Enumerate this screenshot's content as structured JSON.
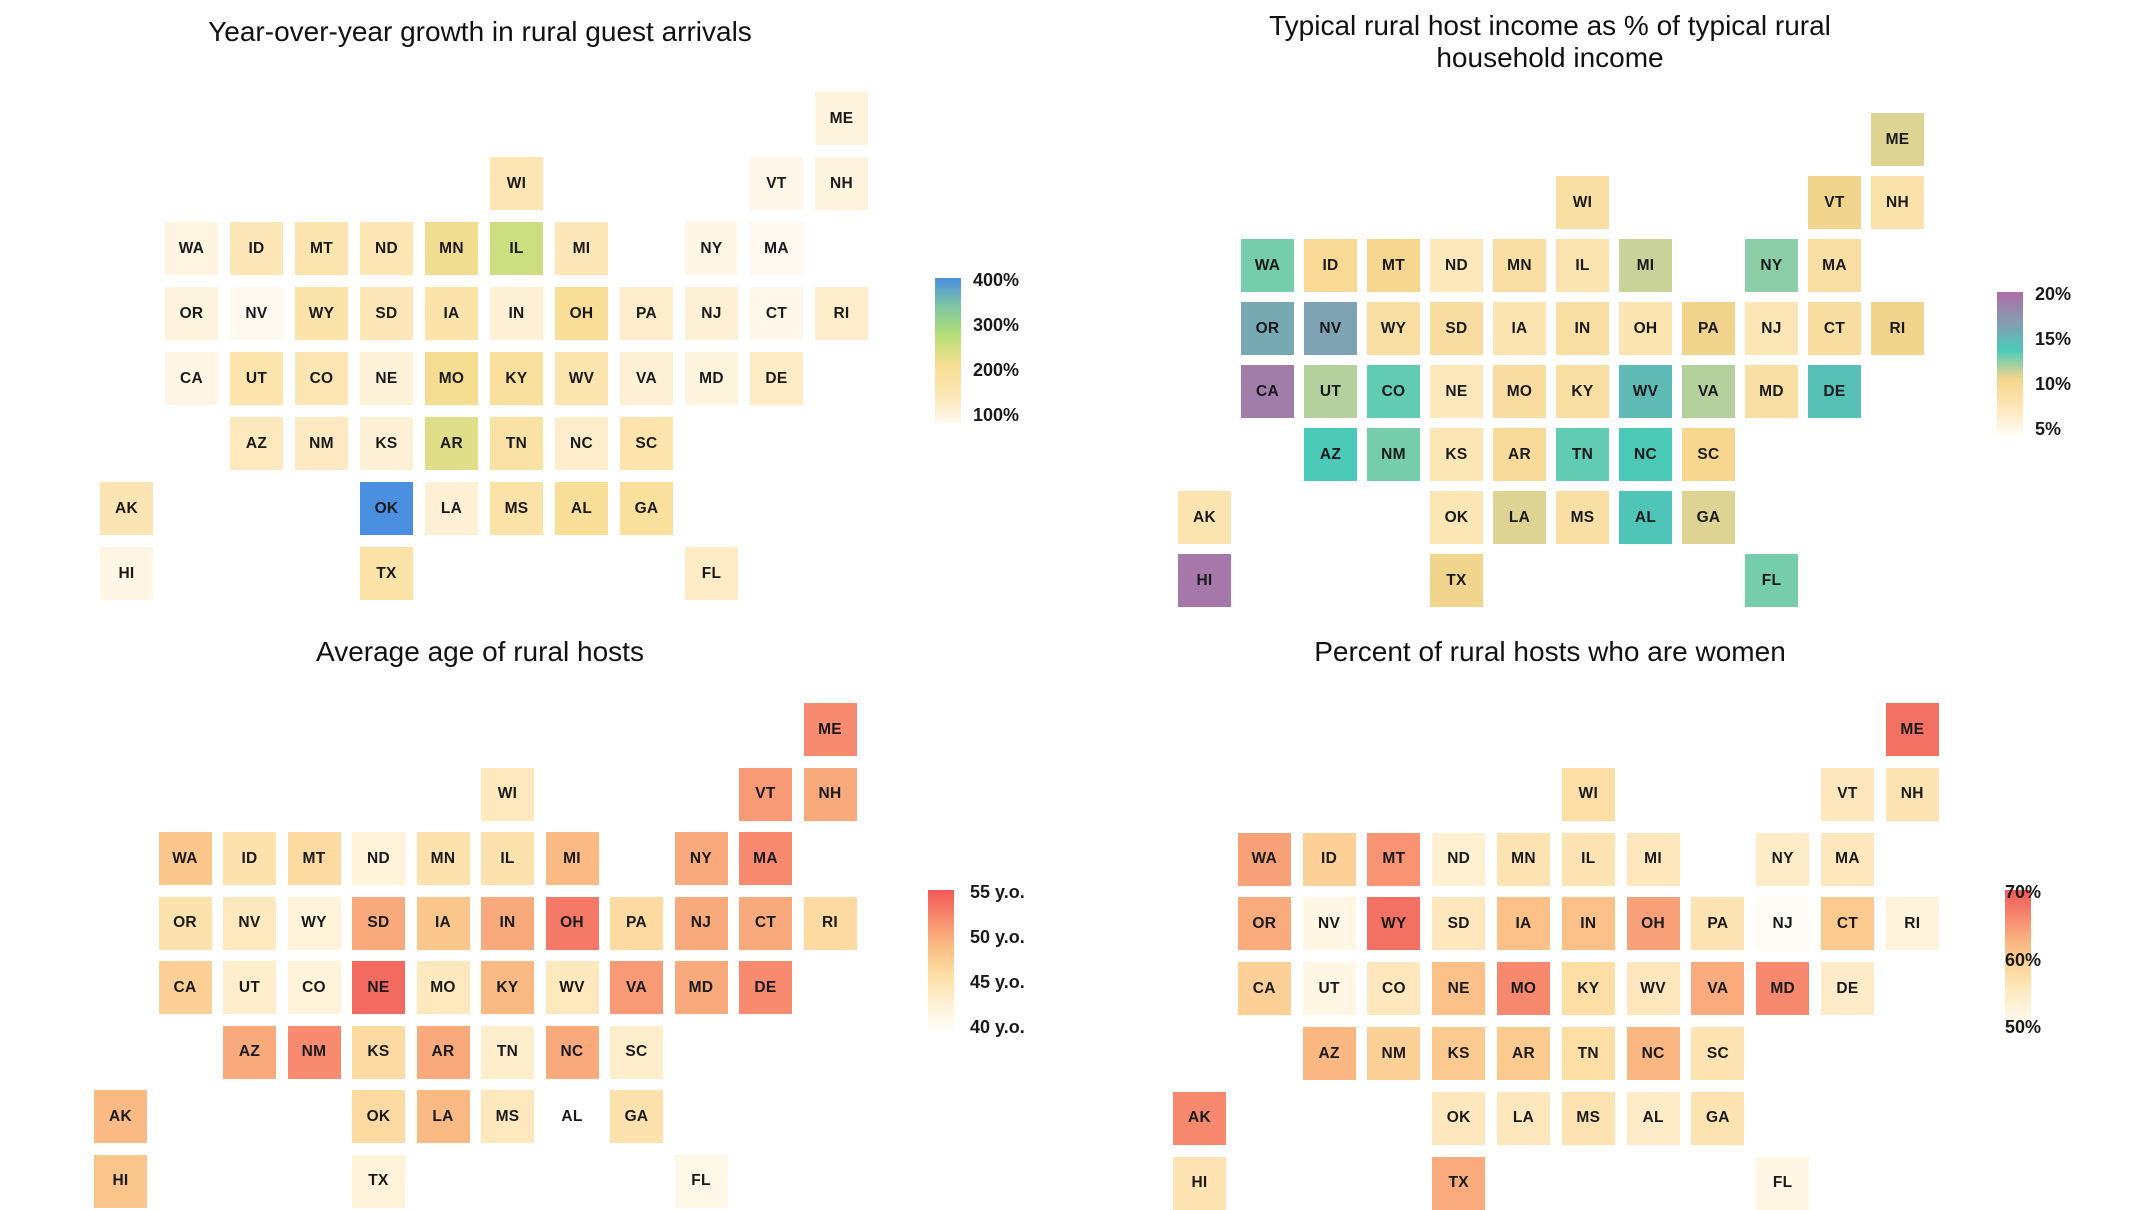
{
  "chart_data": [
    {
      "type": "heatmap",
      "title": "Year-over-year growth in rural guest arrivals",
      "legend": {
        "ticks": [
          "400%",
          "300%",
          "200%",
          "100%"
        ],
        "min": 100,
        "max": 420,
        "colors": [
          "#fff9ef",
          "#fde6b5",
          "#f7dd92",
          "#b7df77",
          "#7fc6a0",
          "#4b8fe0"
        ],
        "placement": "right"
      },
      "values": {
        "ME": 120,
        "WI": 165,
        "VT": 108,
        "NH": 120,
        "WA": 115,
        "ID": 160,
        "MT": 175,
        "ND": 165,
        "MN": 235,
        "IL": 270,
        "MI": 160,
        "NY": 110,
        "MA": 100,
        "OR": 120,
        "NV": 100,
        "WY": 185,
        "SD": 160,
        "IA": 185,
        "IN": 130,
        "OH": 220,
        "PA": 140,
        "NJ": 130,
        "CT": 105,
        "RI": 140,
        "CA": 110,
        "UT": 180,
        "CO": 165,
        "NE": 125,
        "MO": 230,
        "KY": 205,
        "WV": 175,
        "VA": 130,
        "MD": 120,
        "DE": 145,
        "AZ": 155,
        "NM": 150,
        "KS": 130,
        "AR": 250,
        "TN": 195,
        "NC": 140,
        "SC": 180,
        "AK": 170,
        "OK": 420,
        "LA": 130,
        "MS": 190,
        "AL": 220,
        "GA": 210,
        "HI": 110,
        "TX": 190,
        "FL": 145
      }
    },
    {
      "type": "heatmap",
      "title": "Typical rural host income as % of typical rural household income",
      "legend": {
        "ticks": [
          "20%",
          "15%",
          "10%",
          "5%"
        ],
        "min": 0,
        "max": 21,
        "colors": [
          "#fffef9",
          "#fde7b8",
          "#f6d58c",
          "#49cab8",
          "#8a9ab0",
          "#ad6da7"
        ],
        "placement": "right"
      },
      "values": {
        "ME": 9,
        "WI": 6,
        "VT": 8.5,
        "NH": 5.5,
        "WA": 11.5,
        "ID": 7.5,
        "MT": 8,
        "ND": 4,
        "MN": 6,
        "IL": 5,
        "MI": 9.5,
        "NY": 11,
        "MA": 6,
        "OR": 15.5,
        "NV": 16,
        "WY": 6,
        "SD": 6.5,
        "IA": 5,
        "IN": 6,
        "OH": 5,
        "PA": 8.5,
        "NJ": 4.5,
        "CT": 6.5,
        "RI": 8.5,
        "CA": 19.5,
        "UT": 10,
        "CO": 12,
        "NE": 4,
        "MO": 6.5,
        "KY": 6,
        "WV": 14,
        "VA": 10,
        "MD": 6,
        "DE": 13.5,
        "AZ": 12.5,
        "NM": 11.5,
        "KS": 4.5,
        "AR": 7,
        "TN": 12,
        "NC": 12.5,
        "SC": 8,
        "AK": 5,
        "OK": 4.5,
        "LA": 9,
        "MS": 6,
        "AL": 13,
        "GA": 9,
        "HI": 20,
        "TX": 8.5,
        "FL": 11.5
      }
    },
    {
      "type": "heatmap",
      "title": "Average age of rural hosts",
      "legend": {
        "ticks": [
          "55 y.o.",
          "50 y.o.",
          "45 y.o.",
          "40 y.o."
        ],
        "min": 40,
        "max": 56,
        "colors": [
          "#ffffff",
          "#fff2d8",
          "#fde0a8",
          "#fbc086",
          "#f78d70",
          "#f05a58"
        ],
        "placement": "right"
      },
      "values": {
        "ME": 53,
        "WI": 45,
        "VT": 52,
        "NH": 51,
        "WA": 49,
        "ID": 46,
        "MT": 47,
        "ND": 43,
        "MN": 46,
        "IL": 46,
        "MI": 50,
        "NY": 51,
        "MA": 53,
        "OR": 46,
        "NV": 45,
        "WY": 43,
        "SD": 51,
        "IA": 49,
        "IN": 51,
        "OH": 54,
        "PA": 47,
        "NJ": 51,
        "CT": 51,
        "RI": 47,
        "CA": 48,
        "UT": 44,
        "CO": 43,
        "NE": 55,
        "MO": 45,
        "KY": 50,
        "WV": 45,
        "VA": 52,
        "MD": 51,
        "DE": 53,
        "AZ": 51,
        "NM": 53,
        "KS": 47,
        "AR": 51,
        "TN": 44,
        "NC": 51,
        "SC": 44,
        "AK": 50,
        "OK": 47,
        "LA": 50,
        "MS": 45,
        "AL": 40,
        "GA": 46,
        "HI": 49,
        "TX": 43,
        "FL": 42
      }
    },
    {
      "type": "heatmap",
      "title": "Percent of rural hosts who are women",
      "legend": {
        "ticks": [
          "70%",
          "60%",
          "50%"
        ],
        "min": 50,
        "max": 72,
        "colors": [
          "#ffffff",
          "#fff2d8",
          "#fde0a8",
          "#fbc086",
          "#f78d70",
          "#f05a58"
        ],
        "placement": "right"
      },
      "values": {
        "ME": 70,
        "WI": 59,
        "VT": 57,
        "NH": 58,
        "WA": 66,
        "ID": 61,
        "MT": 67,
        "ND": 55,
        "MN": 58,
        "IL": 58,
        "MI": 57,
        "NY": 56,
        "MA": 57,
        "OR": 65,
        "NV": 53,
        "WY": 70,
        "SD": 57,
        "IA": 63,
        "IN": 63,
        "OH": 66,
        "PA": 58,
        "NJ": 51,
        "CT": 62,
        "RI": 54,
        "CA": 61,
        "UT": 53,
        "CO": 57,
        "NE": 63,
        "MO": 68,
        "KY": 59,
        "WV": 57,
        "VA": 65,
        "MD": 68,
        "DE": 56,
        "AZ": 64,
        "NM": 61,
        "KS": 62,
        "AR": 62,
        "TN": 59,
        "NC": 64,
        "SC": 58,
        "AK": 68,
        "OK": 57,
        "LA": 57,
        "MS": 58,
        "AL": 56,
        "GA": 58,
        "HI": 58,
        "TX": 65,
        "FL": 53
      }
    }
  ]
}
